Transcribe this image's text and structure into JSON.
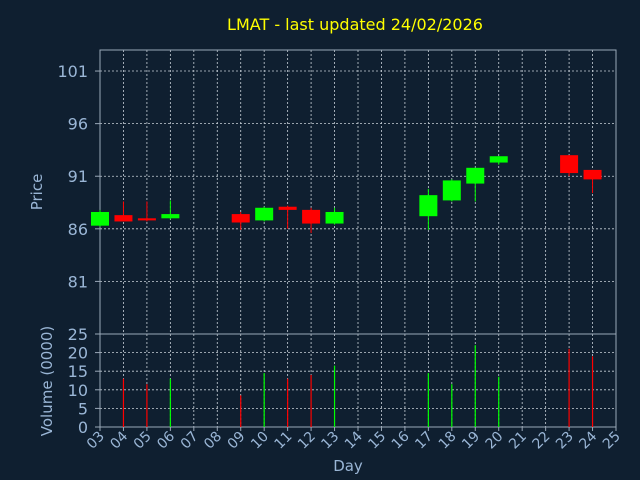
{
  "chart_data": [
    {
      "type": "candlestick",
      "title": "LMAT - last updated 24/02/2026",
      "ylabel": "Price",
      "ylim": [
        76,
        103
      ],
      "yticks": [
        81,
        86,
        91,
        96,
        101
      ],
      "grid": true,
      "colors": {
        "up": "#00ff00",
        "down": "#ff0000"
      },
      "series": [
        {
          "day": "03",
          "open": 86.3,
          "high": 87.8,
          "low": 86.2,
          "close": 87.6
        },
        {
          "day": "04",
          "open": 87.3,
          "high": 88.6,
          "low": 86.7,
          "close": 86.7
        },
        {
          "day": "05",
          "open": 87.0,
          "high": 88.6,
          "low": 86.7,
          "close": 86.8
        },
        {
          "day": "06",
          "open": 87.0,
          "high": 88.7,
          "low": 86.9,
          "close": 87.4
        },
        {
          "day": "09",
          "open": 87.4,
          "high": 87.6,
          "low": 85.9,
          "close": 86.6
        },
        {
          "day": "10",
          "open": 86.8,
          "high": 88.1,
          "low": 86.7,
          "close": 88.0
        },
        {
          "day": "11",
          "open": 88.1,
          "high": 88.2,
          "low": 86.0,
          "close": 87.8
        },
        {
          "day": "12",
          "open": 87.8,
          "high": 88.0,
          "low": 85.6,
          "close": 86.5
        },
        {
          "day": "13",
          "open": 86.5,
          "high": 88.0,
          "low": 86.4,
          "close": 87.6
        },
        {
          "day": "17",
          "open": 87.2,
          "high": 89.8,
          "low": 85.9,
          "close": 89.2
        },
        {
          "day": "18",
          "open": 88.7,
          "high": 90.7,
          "low": 88.6,
          "close": 90.6
        },
        {
          "day": "19",
          "open": 90.3,
          "high": 91.8,
          "low": 88.6,
          "close": 91.8
        },
        {
          "day": "20",
          "open": 92.3,
          "high": 92.9,
          "low": 92.1,
          "close": 92.9
        },
        {
          "day": "23",
          "open": 93.0,
          "high": 93.0,
          "low": 91.0,
          "close": 91.3
        },
        {
          "day": "24",
          "open": 91.6,
          "high": 91.6,
          "low": 89.4,
          "close": 90.7
        }
      ]
    },
    {
      "type": "bar",
      "xlabel": "Day",
      "ylabel": "Volume (0000)",
      "ylim": [
        0,
        25
      ],
      "yticks": [
        0,
        5,
        10,
        15,
        20,
        25
      ],
      "categories": [
        "03",
        "04",
        "05",
        "06",
        "07",
        "08",
        "09",
        "10",
        "11",
        "12",
        "13",
        "14",
        "15",
        "16",
        "17",
        "18",
        "19",
        "20",
        "21",
        "22",
        "23",
        "24",
        "25"
      ],
      "grid": true,
      "series": [
        {
          "day": "04",
          "value": 13.0,
          "direction": "down"
        },
        {
          "day": "05",
          "value": 11.5,
          "direction": "down"
        },
        {
          "day": "06",
          "value": 13.0,
          "direction": "up"
        },
        {
          "day": "09",
          "value": 8.5,
          "direction": "down"
        },
        {
          "day": "10",
          "value": 14.5,
          "direction": "up"
        },
        {
          "day": "11",
          "value": 13.0,
          "direction": "down"
        },
        {
          "day": "12",
          "value": 14.0,
          "direction": "down"
        },
        {
          "day": "13",
          "value": 16.5,
          "direction": "up"
        },
        {
          "day": "17",
          "value": 14.5,
          "direction": "up"
        },
        {
          "day": "18",
          "value": 11.5,
          "direction": "up"
        },
        {
          "day": "19",
          "value": 22.0,
          "direction": "up"
        },
        {
          "day": "20",
          "value": 13.5,
          "direction": "up"
        },
        {
          "day": "23",
          "value": 21.0,
          "direction": "down"
        },
        {
          "day": "24",
          "value": 19.0,
          "direction": "down"
        }
      ]
    }
  ]
}
